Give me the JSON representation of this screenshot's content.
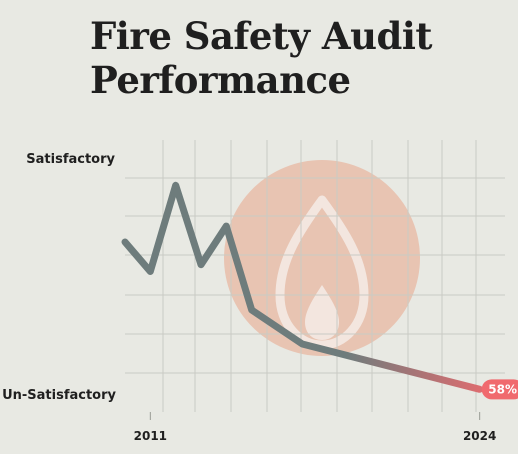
{
  "title": {
    "line1": "Fire Safety Audit",
    "line2": "Performance"
  },
  "chart_data": {
    "type": "line",
    "title": "Fire Safety Audit Performance",
    "y_labels": {
      "top": "Satisfactory",
      "bottom": "Un-Satisfactory"
    },
    "x_tick_labels": [
      "2011",
      "2024"
    ],
    "x": [
      2010,
      2011,
      2012,
      2013,
      2014,
      2015,
      2017,
      2024
    ],
    "values": [
      75,
      62,
      100,
      65,
      82,
      45,
      30,
      10
    ],
    "xlim": [
      2010,
      2025
    ],
    "ylim": [
      0,
      120
    ],
    "end_label": "58%",
    "grid": true,
    "legend": "none"
  },
  "colors": {
    "line_main": "#6e7c7c",
    "line_end": "#f06a6e",
    "badge": "#f06a6e",
    "grid": "#c9cbc4",
    "watermark": "#e8b7a1"
  },
  "icons": {
    "watermark": "flame-icon"
  }
}
